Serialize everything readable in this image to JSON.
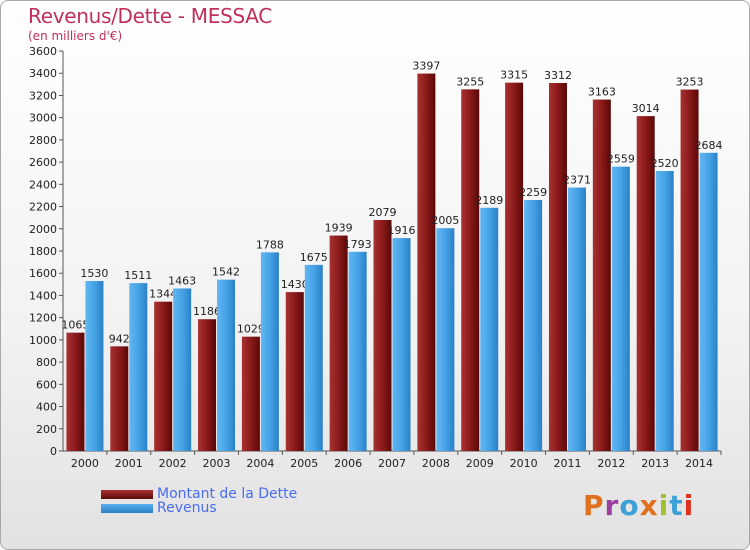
{
  "chart_data": {
    "type": "bar",
    "title": "Revenus/Dette - MESSAC",
    "subtitle": "(en milliers d'€)",
    "categories": [
      "2000",
      "2001",
      "2002",
      "2003",
      "2004",
      "2005",
      "2006",
      "2007",
      "2008",
      "2009",
      "2010",
      "2011",
      "2012",
      "2013",
      "2014"
    ],
    "series": [
      {
        "name": "Montant de la Dette",
        "color": "#8b1a1a",
        "values": [
          1065,
          942,
          1344,
          1186,
          1029,
          1430,
          1939,
          2079,
          3397,
          3255,
          3315,
          3312,
          3163,
          3014,
          3253
        ]
      },
      {
        "name": "Revenus",
        "color": "#3d9be0",
        "values": [
          1530,
          1511,
          1463,
          1542,
          1788,
          1675,
          1793,
          1916,
          2005,
          2189,
          2259,
          2371,
          2559,
          2520,
          2684
        ]
      }
    ],
    "ylim": [
      0,
      3600
    ],
    "ytick_step": 200,
    "grid": false,
    "legend": "bottom-left"
  },
  "logo": {
    "text": "Proxiti",
    "colors": [
      "#e0701e",
      "#9c3fa0",
      "#3da0d8",
      "#e0701e",
      "#a0c030",
      "#3da0d8",
      "#e0301e"
    ]
  }
}
